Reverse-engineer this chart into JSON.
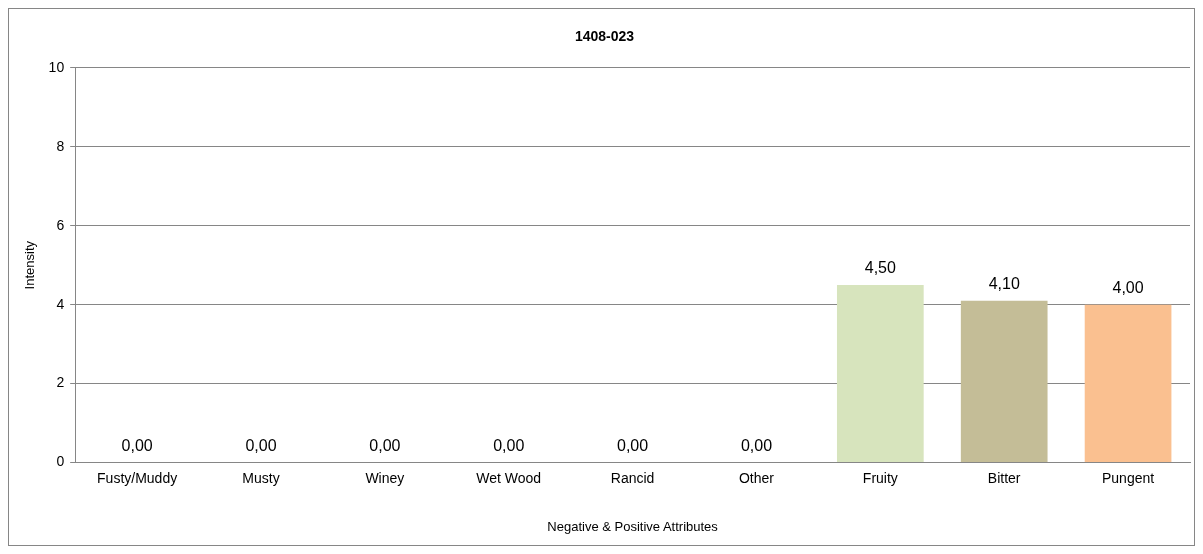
{
  "chart_data": {
    "type": "bar",
    "title": "1408-023",
    "xlabel": "Negative & Positive Attributes",
    "ylabel": "Intensity",
    "categories": [
      "Fusty/Muddy",
      "Musty",
      "Winey",
      "Wet Wood",
      "Rancid",
      "Other",
      "Fruity",
      "Bitter",
      "Pungent"
    ],
    "values": [
      0,
      0,
      0,
      0,
      0,
      0,
      4.5,
      4.1,
      4.0
    ],
    "colors": [
      "#4f81bd",
      "#4f81bd",
      "#4f81bd",
      "#4f81bd",
      "#4f81bd",
      "#4f81bd",
      "#d7e4bd",
      "#c4bd97",
      "#fac090"
    ],
    "value_labels": [
      "0,00",
      "0,00",
      "0,00",
      "0,00",
      "0,00",
      "0,00",
      "4,50",
      "4,10",
      "4,00"
    ],
    "ylim": [
      0,
      10
    ],
    "yticks": [
      0,
      2,
      4,
      6,
      8,
      10
    ],
    "grid": "y",
    "legend": false
  }
}
